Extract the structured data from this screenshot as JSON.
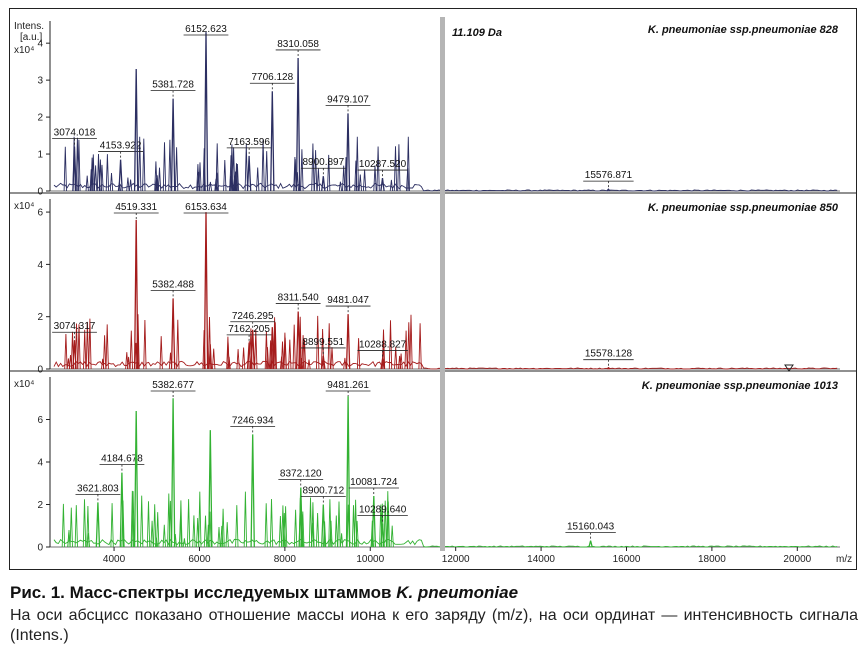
{
  "caption": {
    "title_prefix": "Рис. 1. Масс-спектры исследуемых штаммов ",
    "title_italic": "K. pneumoniae",
    "body": "На оси абсцисс показано отношение массы иона к его заряду (m/z), на оси ординат — интенсивность сигнала (Intens.)"
  },
  "colors": {
    "panel1": "#2c2f62",
    "panel2": "#a51c1c",
    "panel3": "#33b233",
    "divider": "#b5b5b5"
  },
  "chart_data": {
    "type": "line",
    "annotation": "11.109 Da",
    "ylabel": "Intens.",
    "yunit": "[a.u.]",
    "xunit": "m/z",
    "xlim": [
      2500,
      21000
    ],
    "x_ticks": [
      "4000",
      "6000",
      "8000",
      "10000",
      "12000",
      "14000",
      "16000",
      "18000",
      "20000"
    ],
    "x_tick_values": [
      4000,
      6000,
      8000,
      10000,
      12000,
      14000,
      16000,
      18000,
      20000
    ],
    "panels": [
      {
        "name": "K. pneumoniae ssp.pneumoniae 828",
        "exponent_label": "x10⁴",
        "ylim": [
          0,
          4.6
        ],
        "y_ticks": [
          "0",
          "1",
          "2",
          "3",
          "4"
        ],
        "y_tick_values": [
          0,
          1,
          2,
          3,
          4
        ],
        "peaks": [
          {
            "x": 3074.018,
            "y": 1.2,
            "label": "3074.018"
          },
          {
            "x": 4153.922,
            "y": 0.85,
            "label": "4153.922"
          },
          {
            "x": 4519,
            "y": 3.3,
            "label": ""
          },
          {
            "x": 5381.728,
            "y": 2.5,
            "label": "5381.728"
          },
          {
            "x": 6152.623,
            "y": 4.3,
            "label": "6152.623"
          },
          {
            "x": 7163.596,
            "y": 0.95,
            "label": "7163.596"
          },
          {
            "x": 7706.128,
            "y": 2.7,
            "label": "7706.128"
          },
          {
            "x": 8310.058,
            "y": 3.6,
            "label": "8310.058"
          },
          {
            "x": 8900.897,
            "y": 0.4,
            "label": "8900.897"
          },
          {
            "x": 9479.107,
            "y": 2.1,
            "label": "9479.107"
          },
          {
            "x": 10287.52,
            "y": 0.35,
            "label": "10287.520"
          },
          {
            "x": 15576.871,
            "y": 0.05,
            "label": "15576.871"
          }
        ]
      },
      {
        "name": "K. pneumoniae ssp.pneumoniae 850",
        "exponent_label": "x10⁴",
        "ylim": [
          0,
          6.5
        ],
        "y_ticks": [
          "0",
          "2",
          "4",
          "6"
        ],
        "y_tick_values": [
          0,
          2,
          4,
          6
        ],
        "peaks": [
          {
            "x": 3074.317,
            "y": 1.1,
            "label": "3074.317"
          },
          {
            "x": 4519.331,
            "y": 5.7,
            "label": "4519.331"
          },
          {
            "x": 5382.488,
            "y": 2.7,
            "label": "5382.488"
          },
          {
            "x": 6153.634,
            "y": 6.0,
            "label": "6153.634"
          },
          {
            "x": 7162.205,
            "y": 1.0,
            "label": "7162.205"
          },
          {
            "x": 7246.295,
            "y": 1.5,
            "label": "7246.295"
          },
          {
            "x": 7706,
            "y": 1.6,
            "label": ""
          },
          {
            "x": 8311.54,
            "y": 2.2,
            "label": "8311.540"
          },
          {
            "x": 8899.551,
            "y": 0.5,
            "label": "8899.551"
          },
          {
            "x": 9481.047,
            "y": 2.1,
            "label": "9481.047"
          },
          {
            "x": 10288.827,
            "y": 0.4,
            "label": "10288.827"
          },
          {
            "x": 15578.128,
            "y": 0.05,
            "label": "15578.128"
          }
        ]
      },
      {
        "name": "K. pneumoniae ssp.pneumoniae 1013",
        "exponent_label": "x10⁴",
        "ylim": [
          0,
          8.0
        ],
        "y_ticks": [
          "0",
          "2",
          "4",
          "6"
        ],
        "y_tick_values": [
          0,
          2,
          4,
          6
        ],
        "peaks": [
          {
            "x": 3621.803,
            "y": 2.1,
            "label": "3621.803"
          },
          {
            "x": 4184.678,
            "y": 3.5,
            "label": "4184.678"
          },
          {
            "x": 4519,
            "y": 6.4,
            "label": ""
          },
          {
            "x": 5382.677,
            "y": 7.0,
            "label": "5382.677"
          },
          {
            "x": 6254,
            "y": 5.5,
            "label": ""
          },
          {
            "x": 7246.934,
            "y": 5.3,
            "label": "7246.934"
          },
          {
            "x": 8372.12,
            "y": 2.8,
            "label": "8372.120"
          },
          {
            "x": 8900.712,
            "y": 2.0,
            "label": "8900.712"
          },
          {
            "x": 9481.261,
            "y": 7.1,
            "label": "9481.261"
          },
          {
            "x": 10081.724,
            "y": 2.4,
            "label": "10081.724"
          },
          {
            "x": 10289.64,
            "y": 1.1,
            "label": "10289.640"
          },
          {
            "x": 15160.043,
            "y": 0.3,
            "label": "15160.043"
          }
        ]
      }
    ]
  }
}
